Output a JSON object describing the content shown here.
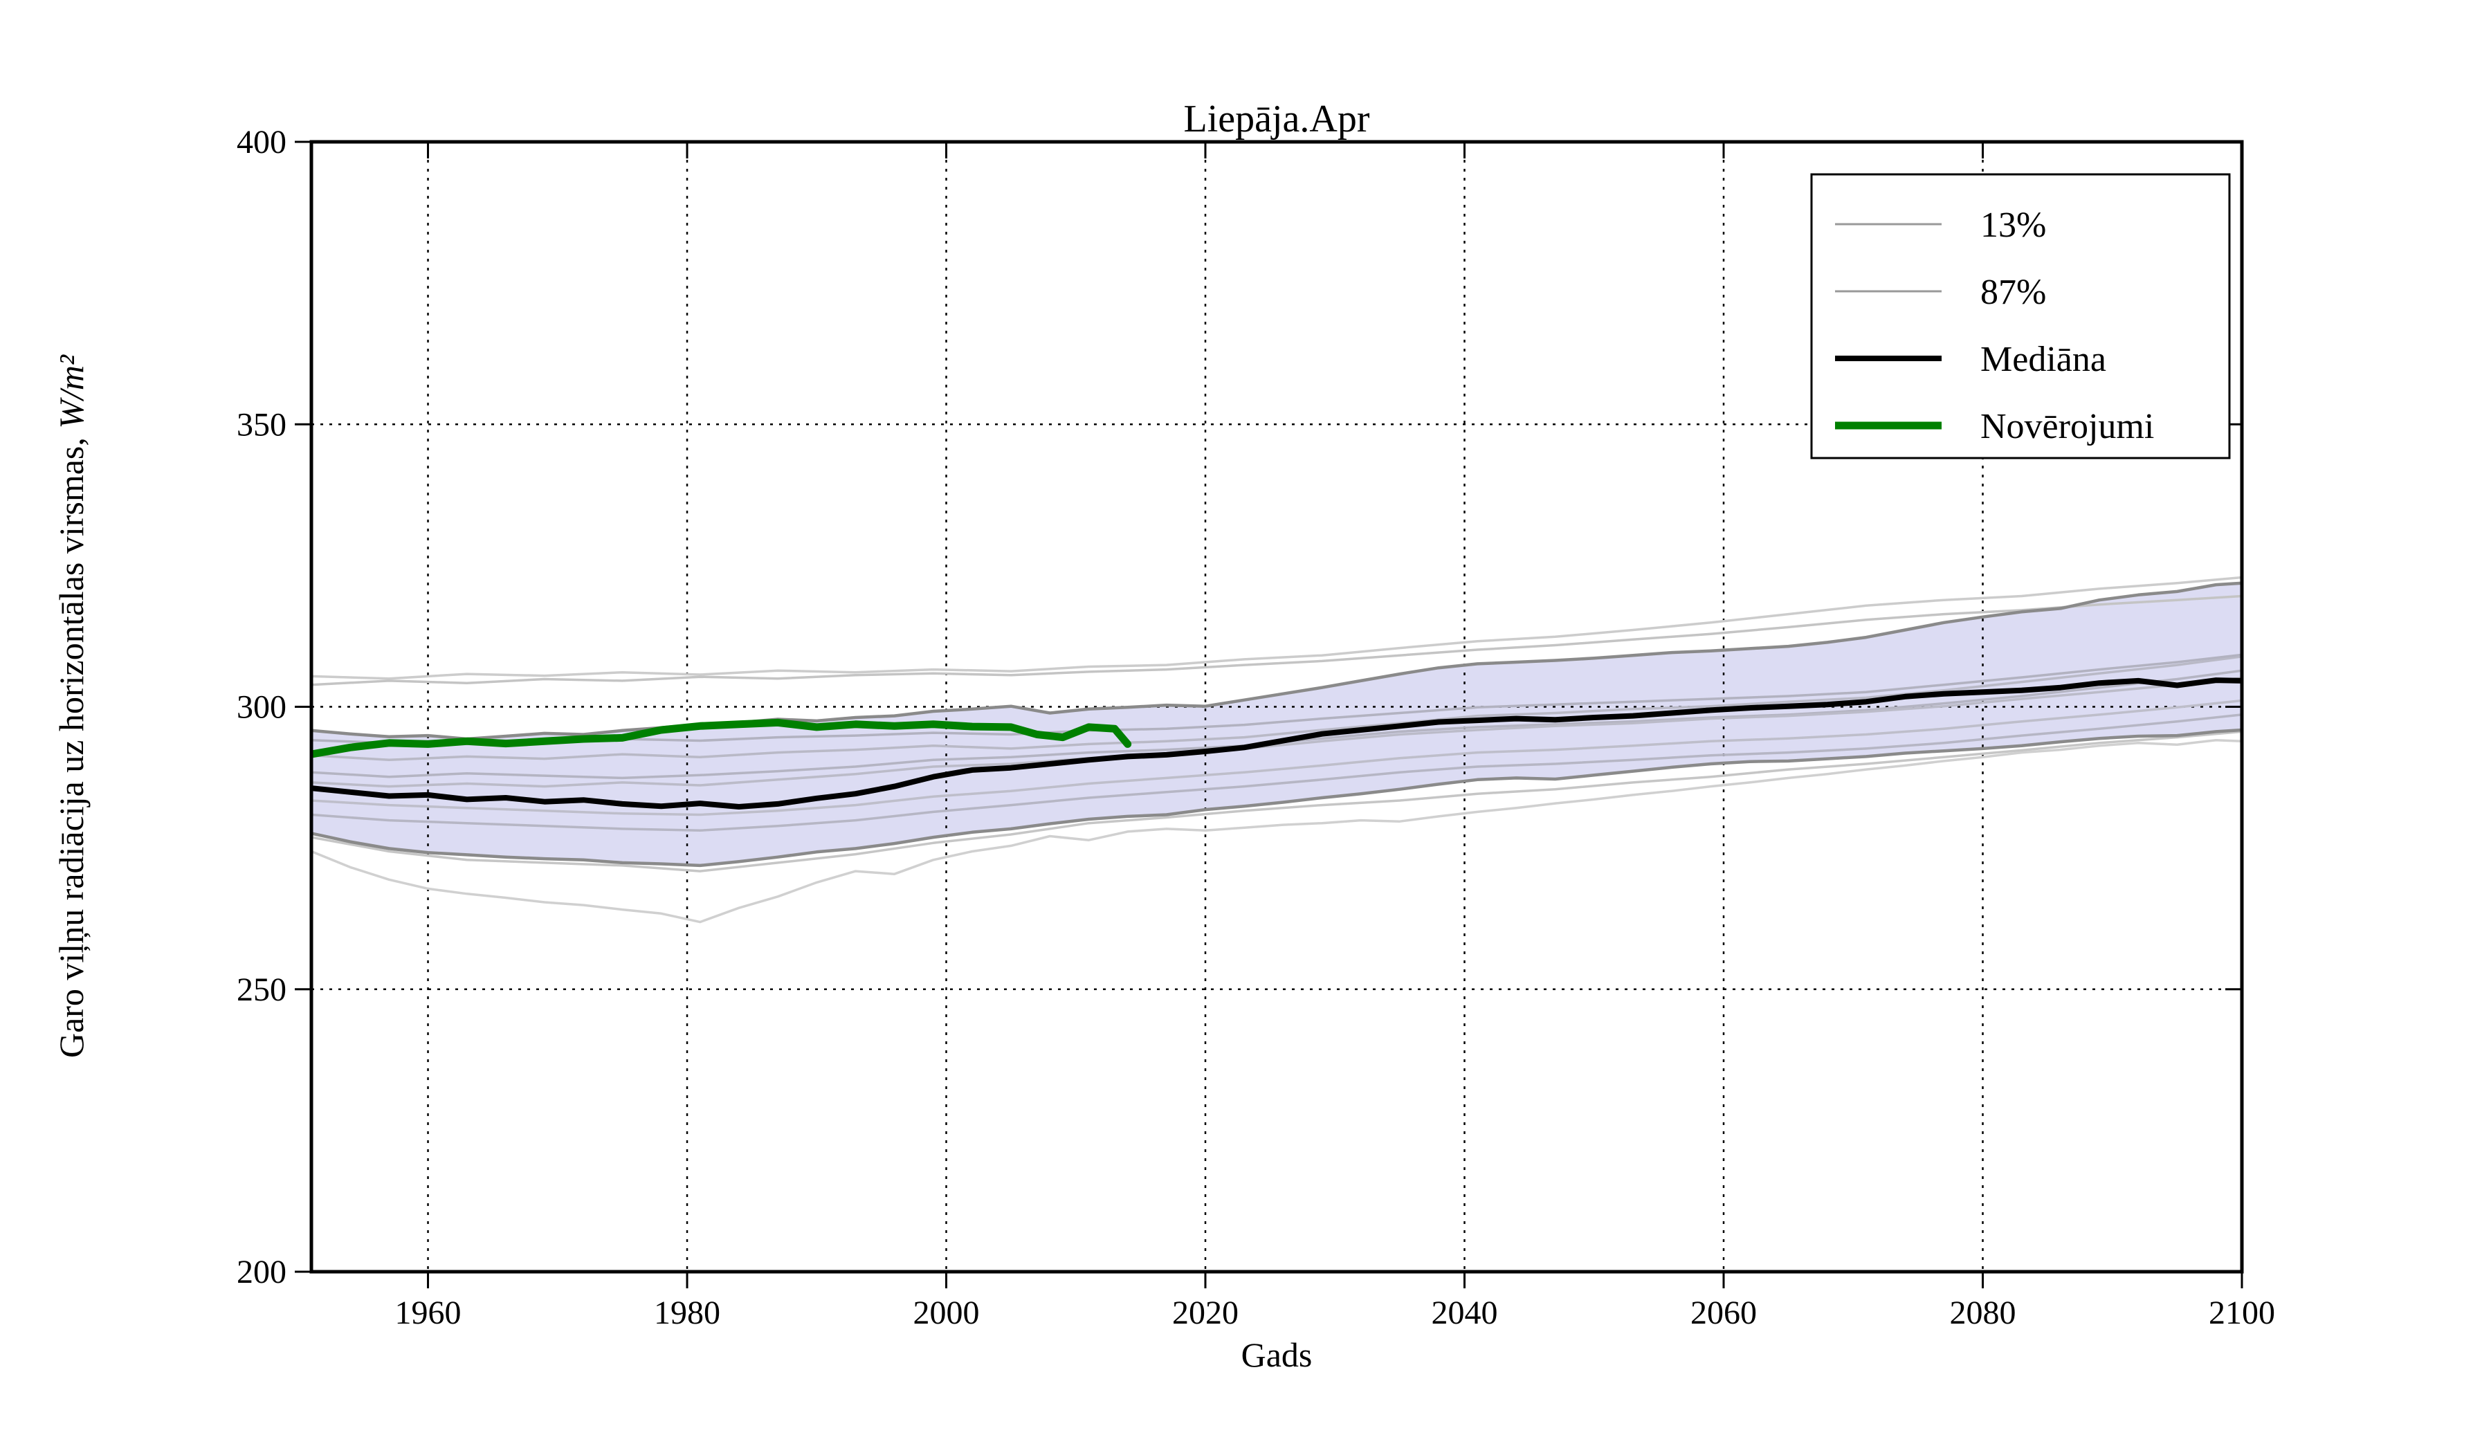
{
  "chart_data": {
    "type": "line",
    "title": "Liepāja.Apr",
    "xlabel": "Gads",
    "ylabel_prefix": "Garo viļņu radiācija uz horizontālas virsmas, ",
    "ylabel_math": "W/m²",
    "xlim": [
      1951,
      2100
    ],
    "ylim": [
      200,
      400
    ],
    "xticks": [
      1960,
      1980,
      2000,
      2020,
      2040,
      2060,
      2080,
      2100
    ],
    "yticks": [
      200,
      250,
      300,
      350,
      400
    ],
    "grid": "dotted",
    "grid_color": "#000000",
    "frame_color": "#000000",
    "background": "#ffffff",
    "x_arrays": {
      "years3": [
        1951,
        1954,
        1957,
        1960,
        1963,
        1966,
        1969,
        1972,
        1975,
        1978,
        1981,
        1984,
        1987,
        1990,
        1993,
        1996,
        1999,
        2002,
        2005,
        2008,
        2011,
        2014,
        2017,
        2020,
        2023,
        2026,
        2029,
        2032,
        2035,
        2038,
        2041,
        2044,
        2047,
        2050,
        2053,
        2056,
        2059,
        2062,
        2065,
        2068,
        2071,
        2074,
        2077,
        2080,
        2083,
        2086,
        2089,
        2092,
        2095,
        2098,
        2100
      ],
      "years6": [
        1951,
        1957,
        1963,
        1969,
        1975,
        1981,
        1987,
        1993,
        1999,
        2005,
        2011,
        2017,
        2023,
        2029,
        2035,
        2041,
        2047,
        2053,
        2059,
        2065,
        2071,
        2077,
        2083,
        2089,
        2095,
        2100
      ],
      "obs_years": [
        1951,
        1954,
        1957,
        1960,
        1963,
        1966,
        1969,
        1972,
        1975,
        1978,
        1981,
        1984,
        1987,
        1990,
        1993,
        1996,
        1999,
        2002,
        2005,
        2007,
        2009,
        2011,
        2013,
        2014
      ]
    },
    "band": {
      "x": "years3",
      "fill": "#dcdcf3",
      "edge_color": "#8a8a8a",
      "edge_width": 4.5,
      "upper_label": "87%",
      "lower_label": "13%",
      "upper": [
        295.8,
        295.2,
        294.7,
        294.9,
        294.3,
        294.8,
        295.3,
        295.1,
        295.8,
        296.3,
        296.9,
        297.2,
        297.8,
        297.5,
        298.1,
        298.4,
        299.2,
        299.6,
        300.1,
        298.9,
        299.6,
        299.9,
        300.3,
        300.1,
        301.2,
        302.3,
        303.4,
        304.6,
        305.8,
        306.9,
        307.6,
        307.9,
        308.2,
        308.6,
        309.1,
        309.6,
        309.9,
        310.3,
        310.7,
        311.4,
        312.3,
        313.6,
        314.9,
        315.9,
        316.8,
        317.4,
        318.9,
        319.8,
        320.4,
        321.6,
        321.9
      ],
      "lower": [
        277.6,
        276.1,
        274.9,
        274.2,
        273.8,
        273.4,
        273.1,
        272.9,
        272.4,
        272.2,
        271.9,
        272.6,
        273.4,
        274.3,
        274.9,
        275.8,
        276.9,
        277.8,
        278.4,
        279.3,
        280.1,
        280.6,
        280.9,
        281.8,
        282.4,
        283.1,
        283.9,
        284.6,
        285.4,
        286.3,
        287.1,
        287.4,
        287.2,
        287.9,
        288.6,
        289.3,
        289.9,
        290.3,
        290.4,
        290.8,
        291.2,
        291.8,
        292.2,
        292.6,
        293.1,
        293.8,
        294.4,
        294.8,
        294.9,
        295.6,
        295.9
      ]
    },
    "series": [
      {
        "name": "ensemble-top-a",
        "x": "years6",
        "color": "#cccccc",
        "width": 3.5,
        "values": [
          305.4,
          305.0,
          305.8,
          305.5,
          306.1,
          305.7,
          306.4,
          306.1,
          306.6,
          306.3,
          307.1,
          307.4,
          308.4,
          309.1,
          310.4,
          311.6,
          312.4,
          313.6,
          314.9,
          316.4,
          317.9,
          318.9,
          319.6,
          320.9,
          321.9,
          322.9
        ]
      },
      {
        "name": "ensemble-top-b",
        "x": "years6",
        "color": "#c4c4c4",
        "width": 3.5,
        "values": [
          303.9,
          304.6,
          304.2,
          304.9,
          304.6,
          305.3,
          305.0,
          305.6,
          305.9,
          305.6,
          306.2,
          306.6,
          307.4,
          308.1,
          309.1,
          310.1,
          310.9,
          311.9,
          312.9,
          314.1,
          315.4,
          316.4,
          317.1,
          318.1,
          318.9,
          319.6
        ]
      },
      {
        "name": "ensemble-low-deep",
        "x": "years3",
        "color": "#d0d0d0",
        "width": 3.5,
        "values": [
          274.4,
          271.6,
          269.4,
          267.8,
          266.9,
          266.2,
          265.4,
          264.9,
          264.1,
          263.4,
          261.9,
          264.4,
          266.4,
          268.9,
          270.9,
          270.4,
          272.9,
          274.4,
          275.4,
          277.1,
          276.4,
          277.9,
          278.4,
          278.1,
          278.6,
          279.1,
          279.4,
          279.9,
          279.7,
          280.6,
          281.4,
          282.1,
          282.9,
          283.6,
          284.4,
          285.1,
          285.9,
          286.6,
          287.4,
          288.1,
          288.9,
          289.6,
          290.4,
          291.1,
          291.9,
          292.4,
          293.1,
          293.6,
          293.3,
          294.1,
          293.9
        ]
      },
      {
        "name": "ensemble-low-hug",
        "x": "years6",
        "color": "#c6c6c6",
        "width": 3.5,
        "values": [
          276.9,
          274.4,
          272.9,
          272.4,
          271.9,
          270.9,
          272.4,
          273.9,
          275.9,
          277.4,
          279.4,
          280.4,
          281.6,
          282.6,
          283.4,
          284.6,
          285.4,
          286.6,
          287.6,
          288.9,
          289.9,
          291.1,
          292.3,
          293.6,
          294.6,
          295.6
        ]
      },
      {
        "name": "ensemble-in-1",
        "x": "years6",
        "color": "#b9b9c6",
        "width": 3.5,
        "values": [
          291.4,
          290.6,
          291.2,
          290.8,
          291.6,
          291.1,
          291.9,
          292.4,
          293.1,
          292.6,
          293.4,
          293.9,
          294.6,
          295.9,
          297.1,
          298.4,
          298.9,
          299.6,
          300.1,
          300.9,
          301.6,
          302.9,
          304.4,
          305.9,
          307.4,
          308.9
        ]
      },
      {
        "name": "ensemble-in-2",
        "x": "years6",
        "color": "#b4b4c2",
        "width": 3.5,
        "values": [
          288.4,
          287.6,
          288.2,
          287.8,
          287.4,
          287.9,
          288.6,
          289.4,
          290.6,
          291.1,
          291.9,
          292.4,
          293.1,
          294.4,
          295.6,
          296.4,
          296.9,
          297.4,
          298.1,
          298.6,
          299.4,
          300.6,
          301.9,
          303.4,
          304.9,
          306.4
        ]
      },
      {
        "name": "ensemble-in-3",
        "x": "years6",
        "color": "#bebeca",
        "width": 3.5,
        "values": [
          283.4,
          282.6,
          282.1,
          281.6,
          281.1,
          280.9,
          281.6,
          282.6,
          284.1,
          285.1,
          286.4,
          287.4,
          288.4,
          289.6,
          290.9,
          291.9,
          292.4,
          293.1,
          293.9,
          294.4,
          295.1,
          296.1,
          297.4,
          298.6,
          299.9,
          301.1
        ]
      },
      {
        "name": "ensemble-in-4",
        "x": "years6",
        "color": "#b6b6c4",
        "width": 3.5,
        "values": [
          280.9,
          279.9,
          279.4,
          278.9,
          278.4,
          278.1,
          278.9,
          279.9,
          281.4,
          282.6,
          283.9,
          284.9,
          285.9,
          287.1,
          288.4,
          289.4,
          289.9,
          290.6,
          291.4,
          291.9,
          292.6,
          293.6,
          294.9,
          296.1,
          297.4,
          298.6
        ]
      },
      {
        "name": "ensemble-in-5",
        "x": "years6",
        "color": "#bbbbc8",
        "width": 3.5,
        "values": [
          286.6,
          285.9,
          286.4,
          285.9,
          286.6,
          286.1,
          287.1,
          288.1,
          289.4,
          289.9,
          290.9,
          291.6,
          292.6,
          293.9,
          295.1,
          295.9,
          296.6,
          297.1,
          297.9,
          298.4,
          299.1,
          300.1,
          301.4,
          302.6,
          303.9,
          305.1
        ]
      },
      {
        "name": "ensemble-in-6",
        "x": "years6",
        "color": "#b2b2c0",
        "width": 3.5,
        "values": [
          294.1,
          293.6,
          294.2,
          293.8,
          294.3,
          294.0,
          294.6,
          294.9,
          295.4,
          295.1,
          295.8,
          296.1,
          296.8,
          297.9,
          298.9,
          299.9,
          300.4,
          300.9,
          301.4,
          301.9,
          302.6,
          303.9,
          305.2,
          306.6,
          307.9,
          309.2
        ]
      },
      {
        "name": "median",
        "x": "years3",
        "color": "#000000",
        "width": 8,
        "values": [
          285.6,
          284.9,
          284.2,
          284.4,
          283.6,
          283.9,
          283.2,
          283.5,
          282.8,
          282.4,
          282.9,
          282.3,
          282.8,
          283.8,
          284.6,
          285.9,
          287.6,
          288.8,
          289.2,
          289.9,
          290.6,
          291.2,
          291.5,
          292.1,
          292.8,
          294.0,
          295.2,
          295.9,
          296.6,
          297.3,
          297.6,
          297.9,
          297.7,
          298.1,
          298.4,
          298.9,
          299.4,
          299.8,
          300.1,
          300.4,
          300.9,
          301.8,
          302.3,
          302.6,
          302.9,
          303.4,
          304.2,
          304.6,
          303.8,
          304.7,
          304.6
        ]
      },
      {
        "name": "observations",
        "x": "obs_years",
        "color": "#008000",
        "width": 11,
        "values": [
          291.6,
          292.8,
          293.6,
          293.4,
          293.9,
          293.5,
          293.9,
          294.3,
          294.5,
          295.9,
          296.6,
          296.9,
          297.2,
          296.4,
          296.9,
          296.6,
          296.9,
          296.5,
          296.4,
          295.1,
          294.6,
          296.4,
          296.1,
          293.4
        ]
      }
    ],
    "legend": {
      "position": "upper right",
      "border_color": "#000000",
      "background": "#ffffff",
      "items": [
        {
          "label": "13%",
          "color": "#999999",
          "width": 3
        },
        {
          "label": "87%",
          "color": "#999999",
          "width": 3
        },
        {
          "label": "Mediāna",
          "color": "#000000",
          "width": 8
        },
        {
          "label": "Novērojumi",
          "color": "#008000",
          "width": 11
        }
      ]
    }
  }
}
